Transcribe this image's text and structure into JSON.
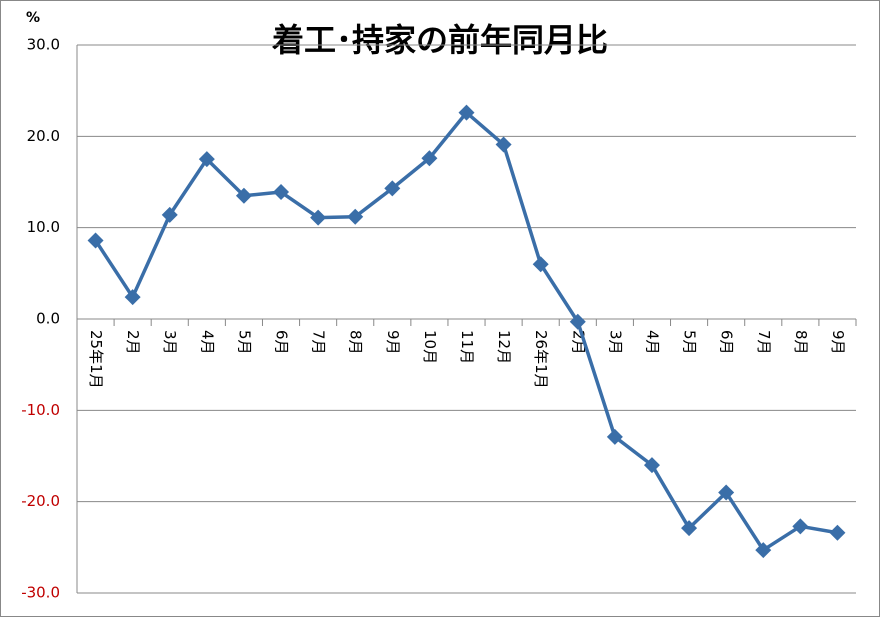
{
  "chart_data": {
    "type": "line",
    "title": "着工･持家の前年同月比",
    "y_unit": "%",
    "categories": [
      "25年1月",
      "2月",
      "3月",
      "4月",
      "5月",
      "6月",
      "7月",
      "8月",
      "9月",
      "10月",
      "11月",
      "12月",
      "26年1月",
      "2月",
      "3月",
      "4月",
      "5月",
      "6月",
      "7月",
      "8月",
      "9月"
    ],
    "series": [
      {
        "name": "前年同月比",
        "color": "#3a6ea8",
        "values": [
          8.6,
          2.4,
          11.4,
          17.5,
          13.5,
          13.9,
          11.1,
          11.2,
          14.3,
          17.6,
          22.6,
          19.1,
          6.0,
          -0.3,
          -12.9,
          -16.0,
          -22.9,
          -19.0,
          -25.3,
          -22.7,
          -23.4
        ]
      }
    ],
    "ylim": [
      -30,
      30
    ],
    "yticks": [
      {
        "value": 30,
        "label": "30.0"
      },
      {
        "value": 20,
        "label": "20.0"
      },
      {
        "value": 10,
        "label": "10.0"
      },
      {
        "value": 0,
        "label": "0.0"
      },
      {
        "value": -10,
        "label": "-10.0"
      },
      {
        "value": -20,
        "label": "-20.0"
      },
      {
        "value": -30,
        "label": "-30.0"
      }
    ],
    "grid": true,
    "negative_tick_color": "#c00000"
  }
}
